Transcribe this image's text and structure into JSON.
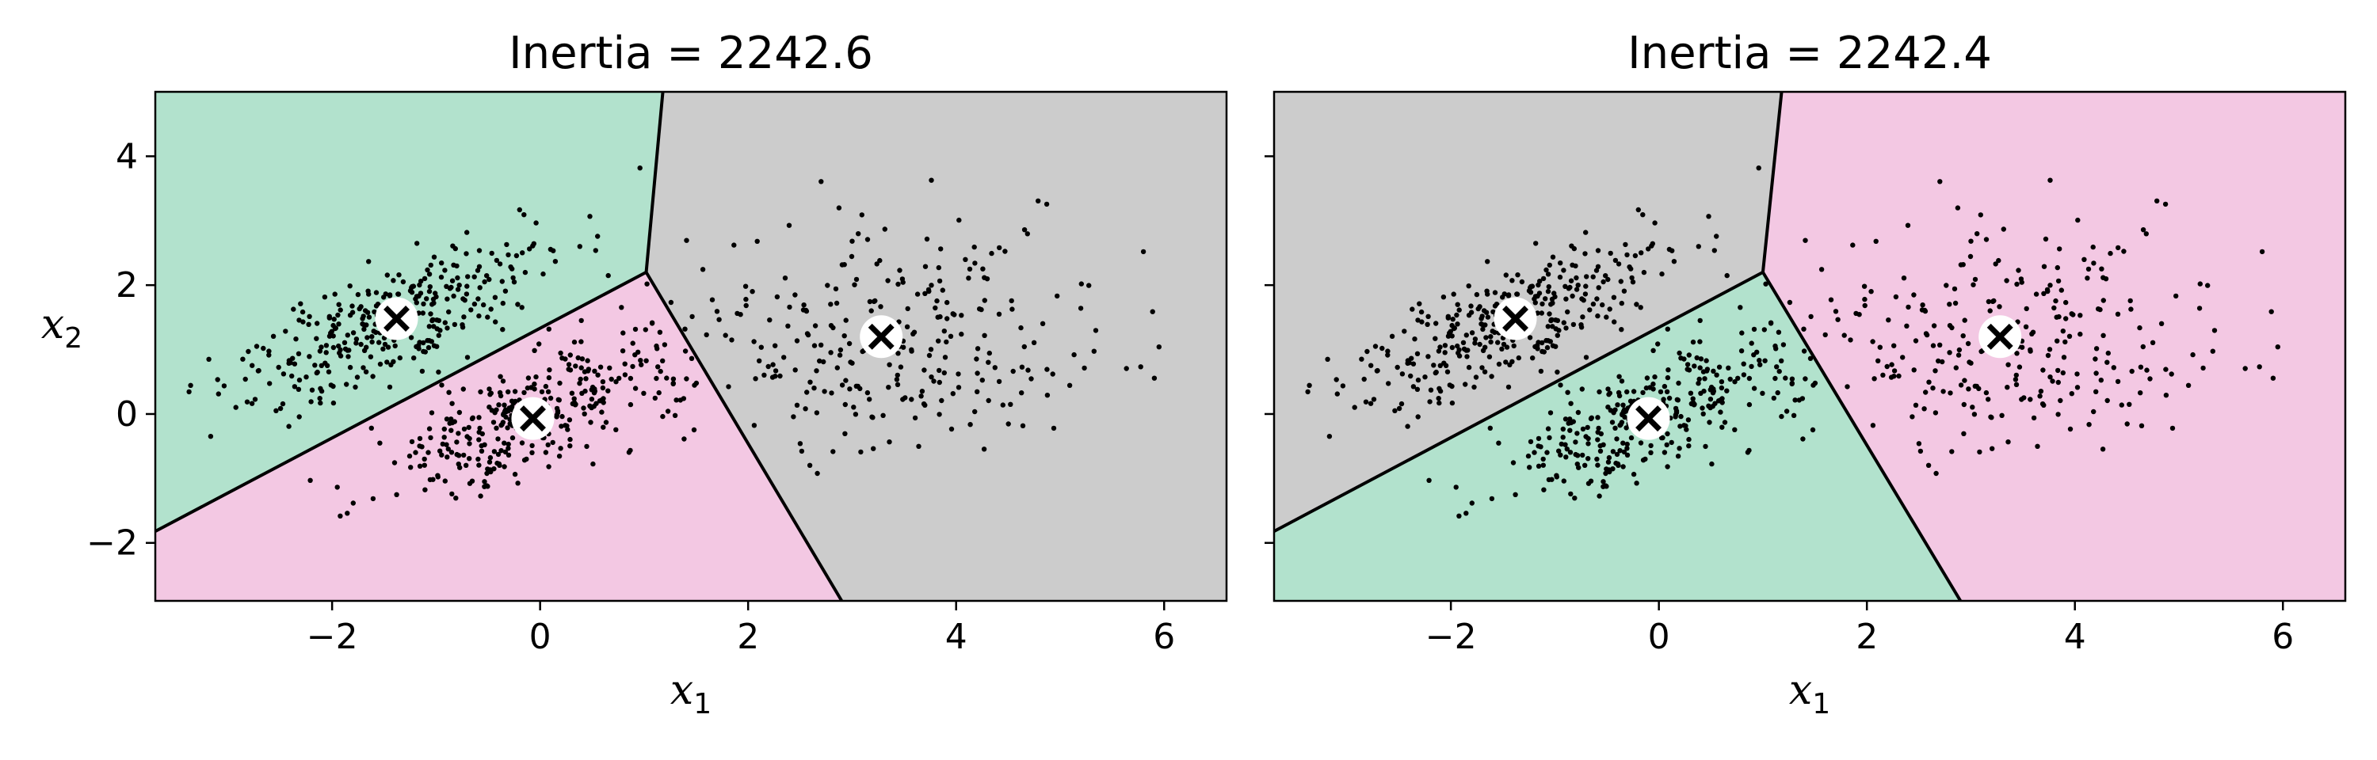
{
  "chart_data": [
    {
      "type": "scatter",
      "title": "Inertia = 2242.6",
      "xlabel": "x",
      "xlabel_sub": "1",
      "ylabel": "x",
      "ylabel_sub": "2",
      "xlim": [
        -3.7,
        6.6
      ],
      "ylim": [
        -2.9,
        5.0
      ],
      "xticks": [
        -2,
        0,
        2,
        4,
        6
      ],
      "xtick_labels": [
        "−2",
        "0",
        "2",
        "4",
        "6"
      ],
      "yticks": [
        -2,
        0,
        2,
        4
      ],
      "ytick_labels": [
        "−2",
        "0",
        "2",
        "4"
      ],
      "show_ylabel": true,
      "show_yticklabels": true,
      "vertex": [
        1.02,
        2.2
      ],
      "region_colors": {
        "upper_left": "#b2e2cd",
        "lower": "#f3c8e3",
        "right": "#cccccc"
      },
      "centroids": [
        {
          "x": -1.38,
          "y": 1.48
        },
        {
          "x": -0.07,
          "y": -0.07
        },
        {
          "x": 3.28,
          "y": 1.2
        }
      ]
    },
    {
      "type": "scatter",
      "title": "Inertia = 2242.4",
      "xlabel": "x",
      "xlabel_sub": "1",
      "ylabel": "",
      "ylabel_sub": "",
      "xlim": [
        -3.7,
        6.6
      ],
      "ylim": [
        -2.9,
        5.0
      ],
      "xticks": [
        -2,
        0,
        2,
        4,
        6
      ],
      "xtick_labels": [
        "−2",
        "0",
        "2",
        "4",
        "6"
      ],
      "yticks": [
        -2,
        0,
        2,
        4
      ],
      "ytick_labels": [],
      "show_ylabel": false,
      "show_yticklabels": false,
      "vertex": [
        1.0,
        2.2
      ],
      "region_colors": {
        "upper_left": "#cccccc",
        "lower": "#b2e2cd",
        "right": "#f3c8e3"
      },
      "centroids": [
        {
          "x": -1.38,
          "y": 1.48
        },
        {
          "x": -0.1,
          "y": -0.07
        },
        {
          "x": 3.28,
          "y": 1.2
        }
      ]
    }
  ]
}
